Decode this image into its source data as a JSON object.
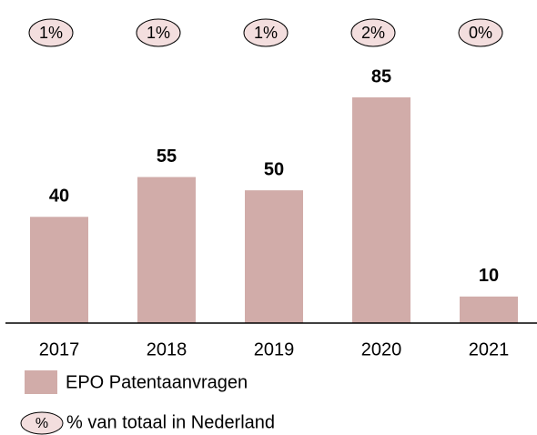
{
  "chart_data": {
    "type": "bar",
    "categories": [
      "2017",
      "2018",
      "2019",
      "2020",
      "2021"
    ],
    "series": [
      {
        "name": "EPO Patentaanvragen",
        "color": "#d1aca9",
        "values": [
          40,
          55,
          50,
          85,
          10
        ]
      },
      {
        "name": "% van totaal in Nederland",
        "symbol": "%",
        "color": "#f3dede",
        "values": [
          1,
          1,
          1,
          2,
          0
        ],
        "value_labels": [
          "1%",
          "1%",
          "1%",
          "2%",
          "0%"
        ]
      }
    ]
  }
}
